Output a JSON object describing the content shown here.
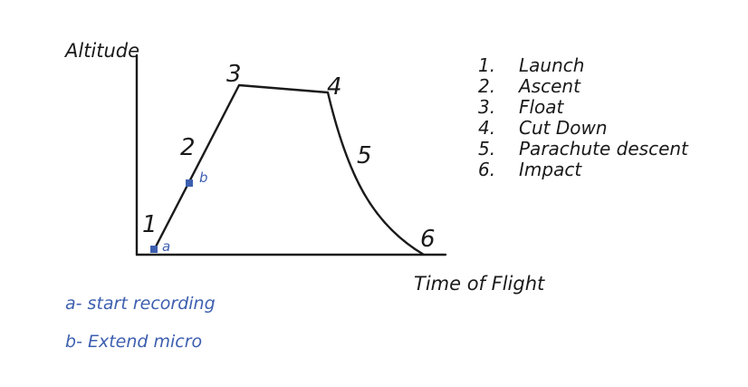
{
  "axes": {
    "y_label": "Altitude",
    "x_label": "Time of Flight"
  },
  "phase_numbers": [
    "1",
    "2",
    "3",
    "4",
    "5",
    "6"
  ],
  "legend": [
    {
      "num": "1.",
      "text": "Launch"
    },
    {
      "num": "2.",
      "text": "Ascent"
    },
    {
      "num": "3.",
      "text": "Float"
    },
    {
      "num": "4.",
      "text": "Cut Down"
    },
    {
      "num": "5.",
      "text": "Parachute descent"
    },
    {
      "num": "6.",
      "text": "Impact"
    }
  ],
  "markers": [
    {
      "label": "a"
    },
    {
      "label": "b"
    }
  ],
  "notes": [
    "a- start recording",
    "b- Extend micro"
  ],
  "colors": {
    "ink": "#1a1a1a",
    "accent": "#3d5fb0"
  }
}
